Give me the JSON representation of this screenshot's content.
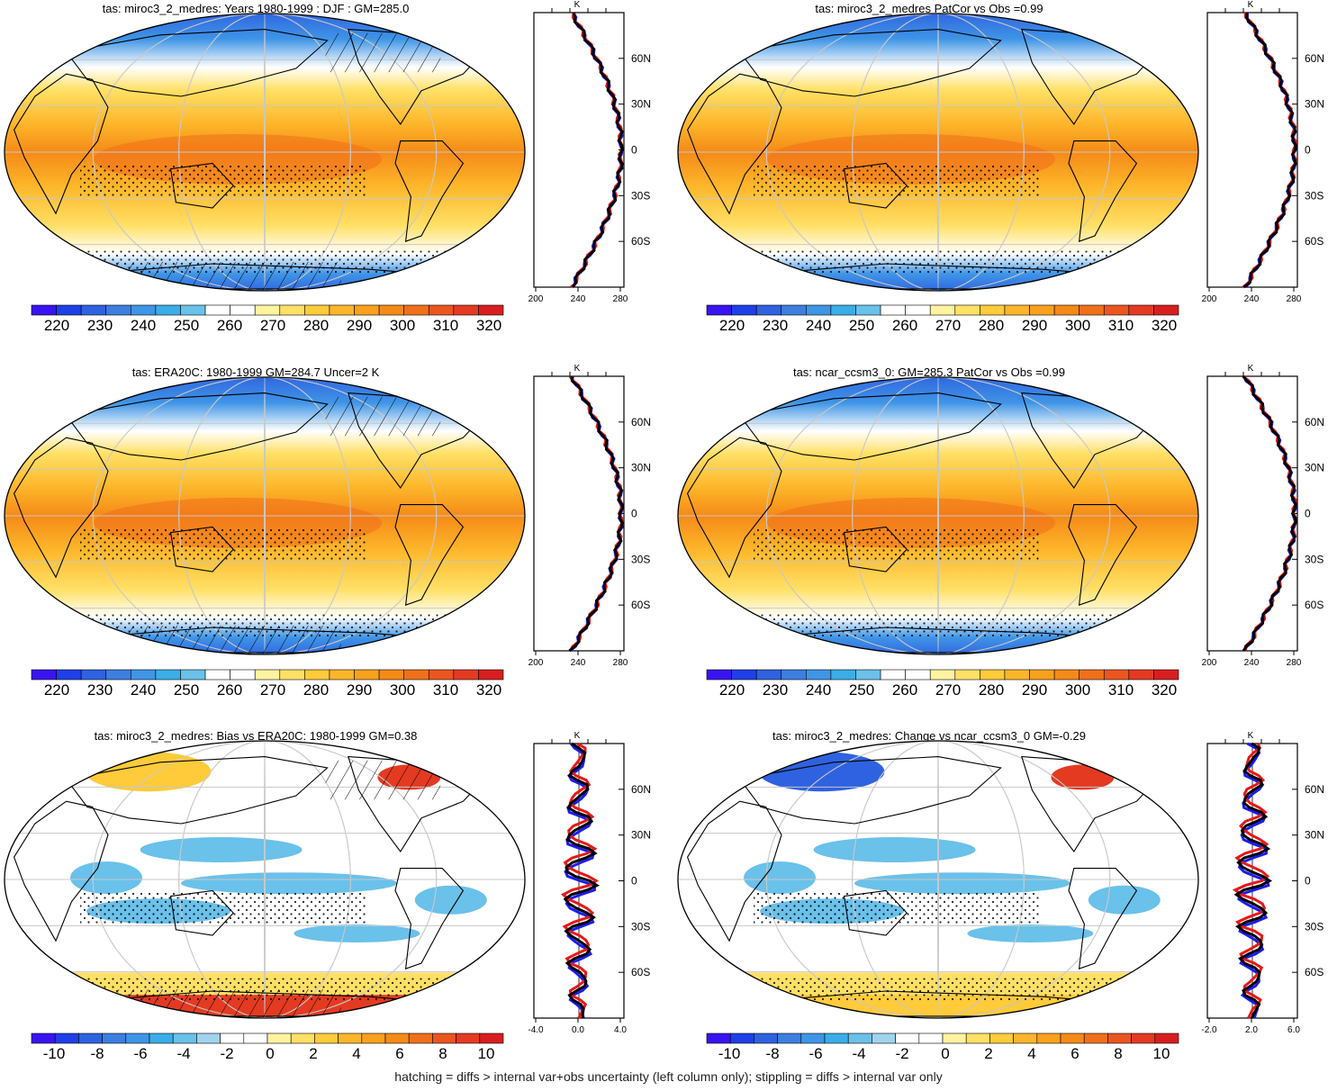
{
  "panels": [
    {
      "title": "tas: miroc3_2_medres: Years 1980-1999 : DJF : GM=285.0",
      "colorbar_labels": [
        "220",
        "230",
        "240",
        "250",
        "260",
        "270",
        "280",
        "290",
        "300",
        "310",
        "320"
      ],
      "colorbar_type": "abs",
      "profile_xticks": [
        "200",
        "240",
        "280"
      ],
      "profile_unit": "K",
      "profile_lat_ticks": [
        "60N",
        "30N",
        "0",
        "30S",
        "60S"
      ]
    },
    {
      "title": "tas: miroc3_2_medres PatCor vs Obs =0.99",
      "colorbar_labels": [
        "220",
        "230",
        "240",
        "250",
        "260",
        "270",
        "280",
        "290",
        "300",
        "310",
        "320"
      ],
      "colorbar_type": "abs",
      "profile_xticks": [
        "200",
        "240",
        "280"
      ],
      "profile_unit": "K",
      "profile_lat_ticks": [
        "60N",
        "30N",
        "0",
        "30S",
        "60S"
      ]
    },
    {
      "title": "tas: ERA20C: 1980-1999 GM=284.7 Uncer=2 K",
      "colorbar_labels": [
        "220",
        "230",
        "240",
        "250",
        "260",
        "270",
        "280",
        "290",
        "300",
        "310",
        "320"
      ],
      "colorbar_type": "abs",
      "profile_xticks": [
        "200",
        "240",
        "280"
      ],
      "profile_unit": "K",
      "profile_lat_ticks": [
        "60N",
        "30N",
        "0",
        "30S",
        "60S"
      ]
    },
    {
      "title": "tas: ncar_ccsm3_0: GM=285.3 PatCor vs Obs =0.99",
      "colorbar_labels": [
        "220",
        "230",
        "240",
        "250",
        "260",
        "270",
        "280",
        "290",
        "300",
        "310",
        "320"
      ],
      "colorbar_type": "abs",
      "profile_xticks": [
        "200",
        "240",
        "280"
      ],
      "profile_unit": "K",
      "profile_lat_ticks": [
        "60N",
        "30N",
        "0",
        "30S",
        "60S"
      ]
    },
    {
      "title": "tas: miroc3_2_medres: Bias vs ERA20C: 1980-1999 GM=0.38",
      "colorbar_labels": [
        "-10",
        "-8",
        "-6",
        "-4",
        "-2",
        "0",
        "2",
        "4",
        "6",
        "8",
        "10"
      ],
      "colorbar_type": "diff",
      "profile_xticks": [
        "-4.0",
        "0.0",
        "4.0"
      ],
      "profile_unit": "K",
      "profile_lat_ticks": [
        "60N",
        "30N",
        "0",
        "30S",
        "60S"
      ]
    },
    {
      "title": "tas: miroc3_2_medres: Change vs ncar_ccsm3_0 GM=-0.29",
      "colorbar_labels": [
        "-10",
        "-8",
        "-6",
        "-4",
        "-2",
        "0",
        "2",
        "4",
        "6",
        "8",
        "10"
      ],
      "colorbar_type": "diff",
      "profile_xticks": [
        "-2.0",
        "2.0",
        "6.0"
      ],
      "profile_unit": "K",
      "profile_lat_ticks": [
        "60N",
        "30N",
        "0",
        "30S",
        "60S"
      ]
    }
  ],
  "colors": {
    "abs_scale": [
      "#3a14f0",
      "#1f3fe8",
      "#2f62e0",
      "#3d7ee0",
      "#3f95e6",
      "#3aaee8",
      "#6ac1ea",
      "#ffffff",
      "#ffffff",
      "#fff3a0",
      "#ffe066",
      "#ffcb3a",
      "#fdb62a",
      "#f9a11c",
      "#f58a18",
      "#f0701a",
      "#eb5520",
      "#e43a22",
      "#d81e20"
    ],
    "diff_scale": [
      "#3a14f0",
      "#1f3fe8",
      "#2f62e0",
      "#3d7ee0",
      "#3f95e6",
      "#3aaee8",
      "#6ac1ea",
      "#9fd4ee",
      "#ffffff",
      "#ffffff",
      "#fff3a0",
      "#ffe066",
      "#ffcb3a",
      "#fdb62a",
      "#f9a11c",
      "#f58a18",
      "#f0701a",
      "#eb5520",
      "#e43a22",
      "#d81e20"
    ],
    "model_line": "#e81818",
    "obs_line": "#1c1cf0",
    "ref_line": "#000000"
  },
  "footer_text": "hatching = diffs > internal var+obs uncertainty (left column only); stippling = diffs > internal var only"
}
